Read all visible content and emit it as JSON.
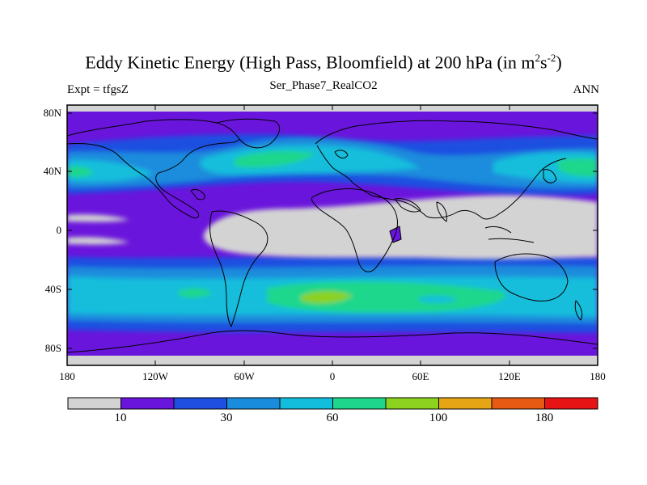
{
  "title": {
    "main": "Eddy Kinetic Energy (High Pass, Bloomfield) at 200 hPa (in m",
    "sup1": "2",
    "mid": "s",
    "sup2": "-2",
    "end": ")"
  },
  "subtitle": {
    "left": "Expt = tfgsZ",
    "center": "Ser_Phase7_RealCO2",
    "right": "ANN"
  },
  "map": {
    "lat_labels": [
      "80N",
      "40N",
      "0",
      "40S",
      "80S"
    ],
    "lon_labels": [
      "180",
      "120W",
      "60W",
      "0",
      "60E",
      "120E",
      "180"
    ]
  },
  "colorbar": {
    "colors": [
      "#d3d3d3",
      "#6a15dc",
      "#1e4fe0",
      "#1a8cdc",
      "#12bedc",
      "#1ed78c",
      "#8cd21e",
      "#e6a514",
      "#e65a14",
      "#e61414"
    ],
    "labels": [
      "10",
      "30",
      "60",
      "100",
      "180"
    ]
  },
  "colors": {
    "land_outline": "#000000",
    "frame": "#000000"
  }
}
